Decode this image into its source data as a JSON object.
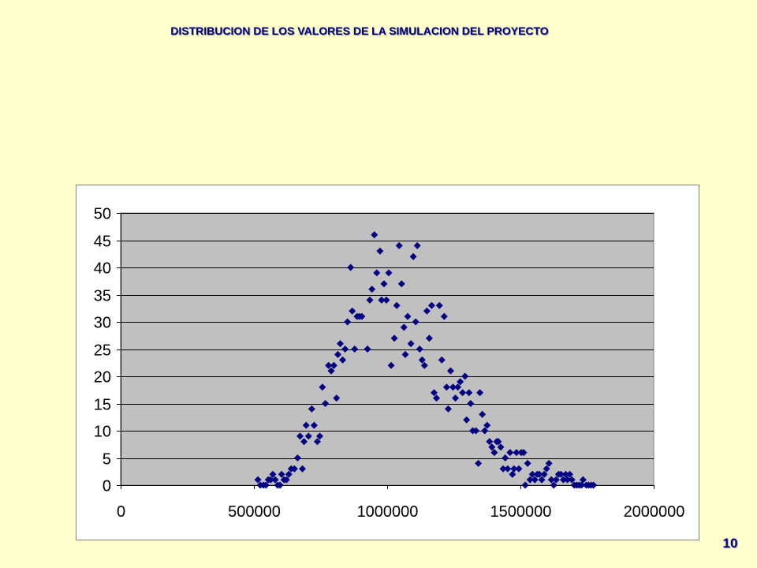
{
  "slide": {
    "title": "DISTRIBUCION DE LOS VALORES DE LA SIMULACION DEL PROYECTO",
    "page_number": "10",
    "background_color": "#FFFFCC",
    "text_color": "#000080"
  },
  "chart_data": {
    "type": "scatter",
    "xlim": [
      0,
      2000000
    ],
    "ylim": [
      0,
      50
    ],
    "x_ticks": [
      "0",
      "500000",
      "1000000",
      "1500000",
      "2000000"
    ],
    "y_ticks": [
      "0",
      "5",
      "10",
      "15",
      "20",
      "25",
      "30",
      "35",
      "40",
      "45",
      "50"
    ],
    "grid": "horizontal",
    "legend": "none",
    "marker": "diamond",
    "marker_color": "#000080",
    "plot_background": "#C0C0C0",
    "series": [
      {
        "x": [
          515000,
          524000,
          536000,
          545000,
          554000,
          563000,
          571000,
          580000,
          589000,
          598000,
          604000,
          613000,
          622000,
          631000,
          640000,
          652000,
          664000,
          673000,
          682000,
          688000,
          696000,
          705000,
          717000,
          726000,
          738000,
          747000,
          757000,
          768000,
          780000,
          790000,
          800000,
          810000,
          815000,
          824000,
          833000,
          842000,
          851000,
          863000,
          869000,
          878000,
          887000,
          896000,
          905000,
          926000,
          935000,
          943000,
          952000,
          961000,
          973000,
          979000,
          988000,
          997000,
          1006000,
          1015000,
          1027000,
          1036000,
          1045000,
          1054000,
          1063000,
          1068000,
          1077000,
          1089000,
          1098000,
          1107000,
          1113000,
          1122000,
          1131000,
          1140000,
          1149000,
          1158000,
          1167000,
          1176000,
          1185000,
          1196000,
          1205000,
          1214000,
          1223000,
          1229000,
          1238000,
          1247000,
          1256000,
          1265000,
          1274000,
          1283000,
          1292000,
          1298000,
          1307000,
          1313000,
          1321000,
          1333000,
          1342000,
          1348000,
          1357000,
          1366000,
          1375000,
          1384000,
          1393000,
          1402000,
          1411000,
          1417000,
          1426000,
          1435000,
          1443000,
          1452000,
          1461000,
          1470000,
          1476000,
          1485000,
          1494000,
          1503000,
          1512000,
          1518000,
          1527000,
          1536000,
          1545000,
          1554000,
          1563000,
          1571000,
          1580000,
          1589000,
          1598000,
          1607000,
          1616000,
          1625000,
          1634000,
          1643000,
          1652000,
          1661000,
          1670000,
          1676000,
          1685000,
          1693000,
          1702000,
          1711000,
          1720000,
          1729000,
          1735000,
          1747000,
          1756000,
          1765000,
          1774000
        ],
        "y": [
          1,
          0,
          0,
          0,
          1,
          1,
          2,
          1,
          0,
          0,
          2,
          1,
          1,
          2,
          3,
          3,
          5,
          9,
          3,
          8,
          11,
          9,
          14,
          11,
          8,
          9,
          18,
          15,
          22,
          21,
          22,
          16,
          24,
          26,
          23,
          25,
          30,
          40,
          32,
          25,
          31,
          31,
          31,
          25,
          34,
          36,
          46,
          39,
          43,
          34,
          37,
          34,
          39,
          22,
          27,
          33,
          44,
          37,
          29,
          24,
          31,
          26,
          42,
          30,
          44,
          25,
          23,
          22,
          32,
          27,
          33,
          17,
          16,
          33,
          23,
          31,
          18,
          14,
          21,
          18,
          16,
          18,
          19,
          17,
          20,
          12,
          17,
          15,
          10,
          10,
          4,
          17,
          13,
          10,
          11,
          8,
          7,
          6,
          8,
          8,
          7,
          3,
          5,
          3,
          6,
          2,
          3,
          6,
          3,
          6,
          6,
          0,
          4,
          1,
          2,
          1,
          2,
          2,
          1,
          2,
          3,
          4,
          1,
          0,
          1,
          2,
          2,
          1,
          2,
          1,
          2,
          1,
          0,
          0,
          0,
          0,
          1,
          0,
          0,
          0,
          0
        ]
      }
    ]
  }
}
